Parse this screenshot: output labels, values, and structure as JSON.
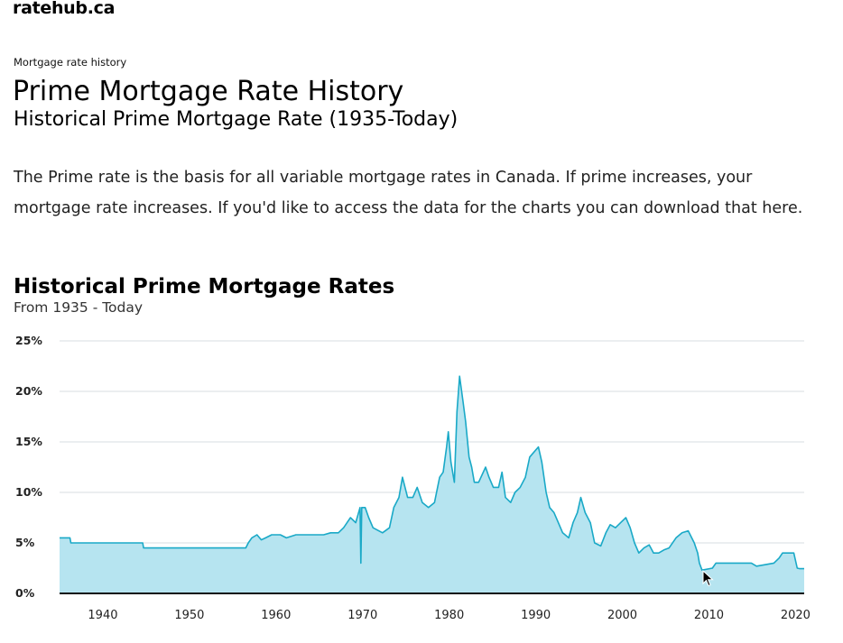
{
  "brand": {
    "logo": "ratehub.ca"
  },
  "header": {
    "eyebrow": "Mortgage rate history",
    "title": "Prime Mortgage Rate History",
    "subtitle": "Historical Prime Mortgage Rate (1935-Today)"
  },
  "intro": {
    "text": "The Prime rate is the basis for all variable mortgage rates in Canada. If prime increases, your mortgage rate increases. If you'd like to access the data for the charts you can download that here."
  },
  "chart_data": {
    "type": "area",
    "title": "Historical Prime Mortgage Rates",
    "subtitle": "From 1935 - Today",
    "xlabel": "",
    "ylabel": "",
    "xlim": [
      1935,
      2021
    ],
    "ylim": [
      0,
      25
    ],
    "y_ticks": [
      0,
      5,
      10,
      15,
      20,
      25
    ],
    "y_tick_labels": [
      "0%",
      "5%",
      "10%",
      "15%",
      "20%",
      "25%"
    ],
    "x_ticks": [
      1940,
      1950,
      1960,
      1970,
      1980,
      1990,
      2000,
      2010,
      2020
    ],
    "x_tick_labels": [
      "1940",
      "1950",
      "1960",
      "1970",
      "1980",
      "1990",
      "2000",
      "2010",
      "2020"
    ],
    "grid": true,
    "colors": {
      "line": "#1aa9c7",
      "fill": "#b6e4f0",
      "grid": "#d7dde1",
      "axis": "#111111"
    },
    "series": [
      {
        "x": [
          1935,
          1936.2,
          1936.3,
          1944.6,
          1944.7,
          1956.5,
          1956.8,
          1957.2,
          1957.8,
          1958.3,
          1958.8,
          1959.5,
          1960.5,
          1961.2,
          1962.3,
          1962.6,
          1963.3,
          1965.5,
          1966.3,
          1967.2,
          1967.8,
          1968.2,
          1968.6,
          1969.2,
          1969.7,
          1969.8,
          1969.9,
          1970.3,
          1970.7,
          1971.2,
          1972.3,
          1973.1,
          1973.6,
          1974.2,
          1974.6,
          1975.2,
          1975.8,
          1976.3,
          1976.9,
          1977.6,
          1978.3,
          1978.9,
          1979.3,
          1979.7,
          1979.9,
          1980.2,
          1980.6,
          1980.9,
          1981.2,
          1981.6,
          1981.9,
          1982.3,
          1982.6,
          1982.9,
          1983.4,
          1984.2,
          1984.6,
          1985.1,
          1985.7,
          1986.1,
          1986.5,
          1987.1,
          1987.6,
          1988.2,
          1988.8,
          1989.3,
          1989.8,
          1990.3,
          1990.7,
          1991.2,
          1991.6,
          1992.1,
          1992.6,
          1993.1,
          1993.8,
          1994.3,
          1994.8,
          1995.2,
          1995.7,
          1996.3,
          1996.8,
          1997.5,
          1998.1,
          1998.6,
          1999.2,
          1999.8,
          2000.4,
          2000.9,
          2001.4,
          2001.9,
          2002.5,
          2003.1,
          2003.6,
          2004.2,
          2004.8,
          2005.4,
          2006.2,
          2006.9,
          2007.6,
          2008.3,
          2008.7,
          2008.9,
          2009.2,
          2010.4,
          2010.8,
          2014.9,
          2015.5,
          2017.5,
          2018.1,
          2018.5,
          2019.8,
          2020.2,
          2020.5,
          2021
        ],
        "y": [
          5.5,
          5.5,
          5.0,
          5.0,
          4.5,
          4.5,
          5.0,
          5.5,
          5.8,
          5.3,
          5.5,
          5.8,
          5.8,
          5.5,
          5.8,
          5.8,
          5.8,
          5.8,
          6.0,
          6.0,
          6.5,
          7.0,
          7.5,
          7.0,
          8.5,
          3.0,
          8.5,
          8.5,
          7.5,
          6.5,
          6.0,
          6.5,
          8.5,
          9.5,
          11.5,
          9.5,
          9.5,
          10.5,
          9.0,
          8.5,
          9.0,
          11.5,
          12.0,
          14.5,
          16.0,
          13.0,
          11.0,
          18.0,
          21.5,
          19.0,
          17.0,
          13.5,
          12.5,
          11.0,
          11.0,
          12.5,
          11.5,
          10.5,
          10.5,
          12.0,
          9.5,
          9.0,
          10.0,
          10.5,
          11.5,
          13.5,
          14.0,
          14.5,
          13.0,
          10.0,
          8.5,
          8.0,
          7.0,
          6.0,
          5.5,
          7.0,
          8.0,
          9.5,
          8.0,
          7.0,
          5.0,
          4.7,
          6.0,
          6.8,
          6.5,
          7.0,
          7.5,
          6.5,
          5.0,
          4.0,
          4.5,
          4.8,
          4.0,
          4.0,
          4.3,
          4.5,
          5.5,
          6.0,
          6.2,
          5.0,
          4.0,
          3.0,
          2.3,
          2.5,
          3.0,
          3.0,
          2.7,
          3.0,
          3.5,
          4.0,
          4.0,
          2.5,
          2.45,
          2.45
        ]
      }
    ]
  }
}
